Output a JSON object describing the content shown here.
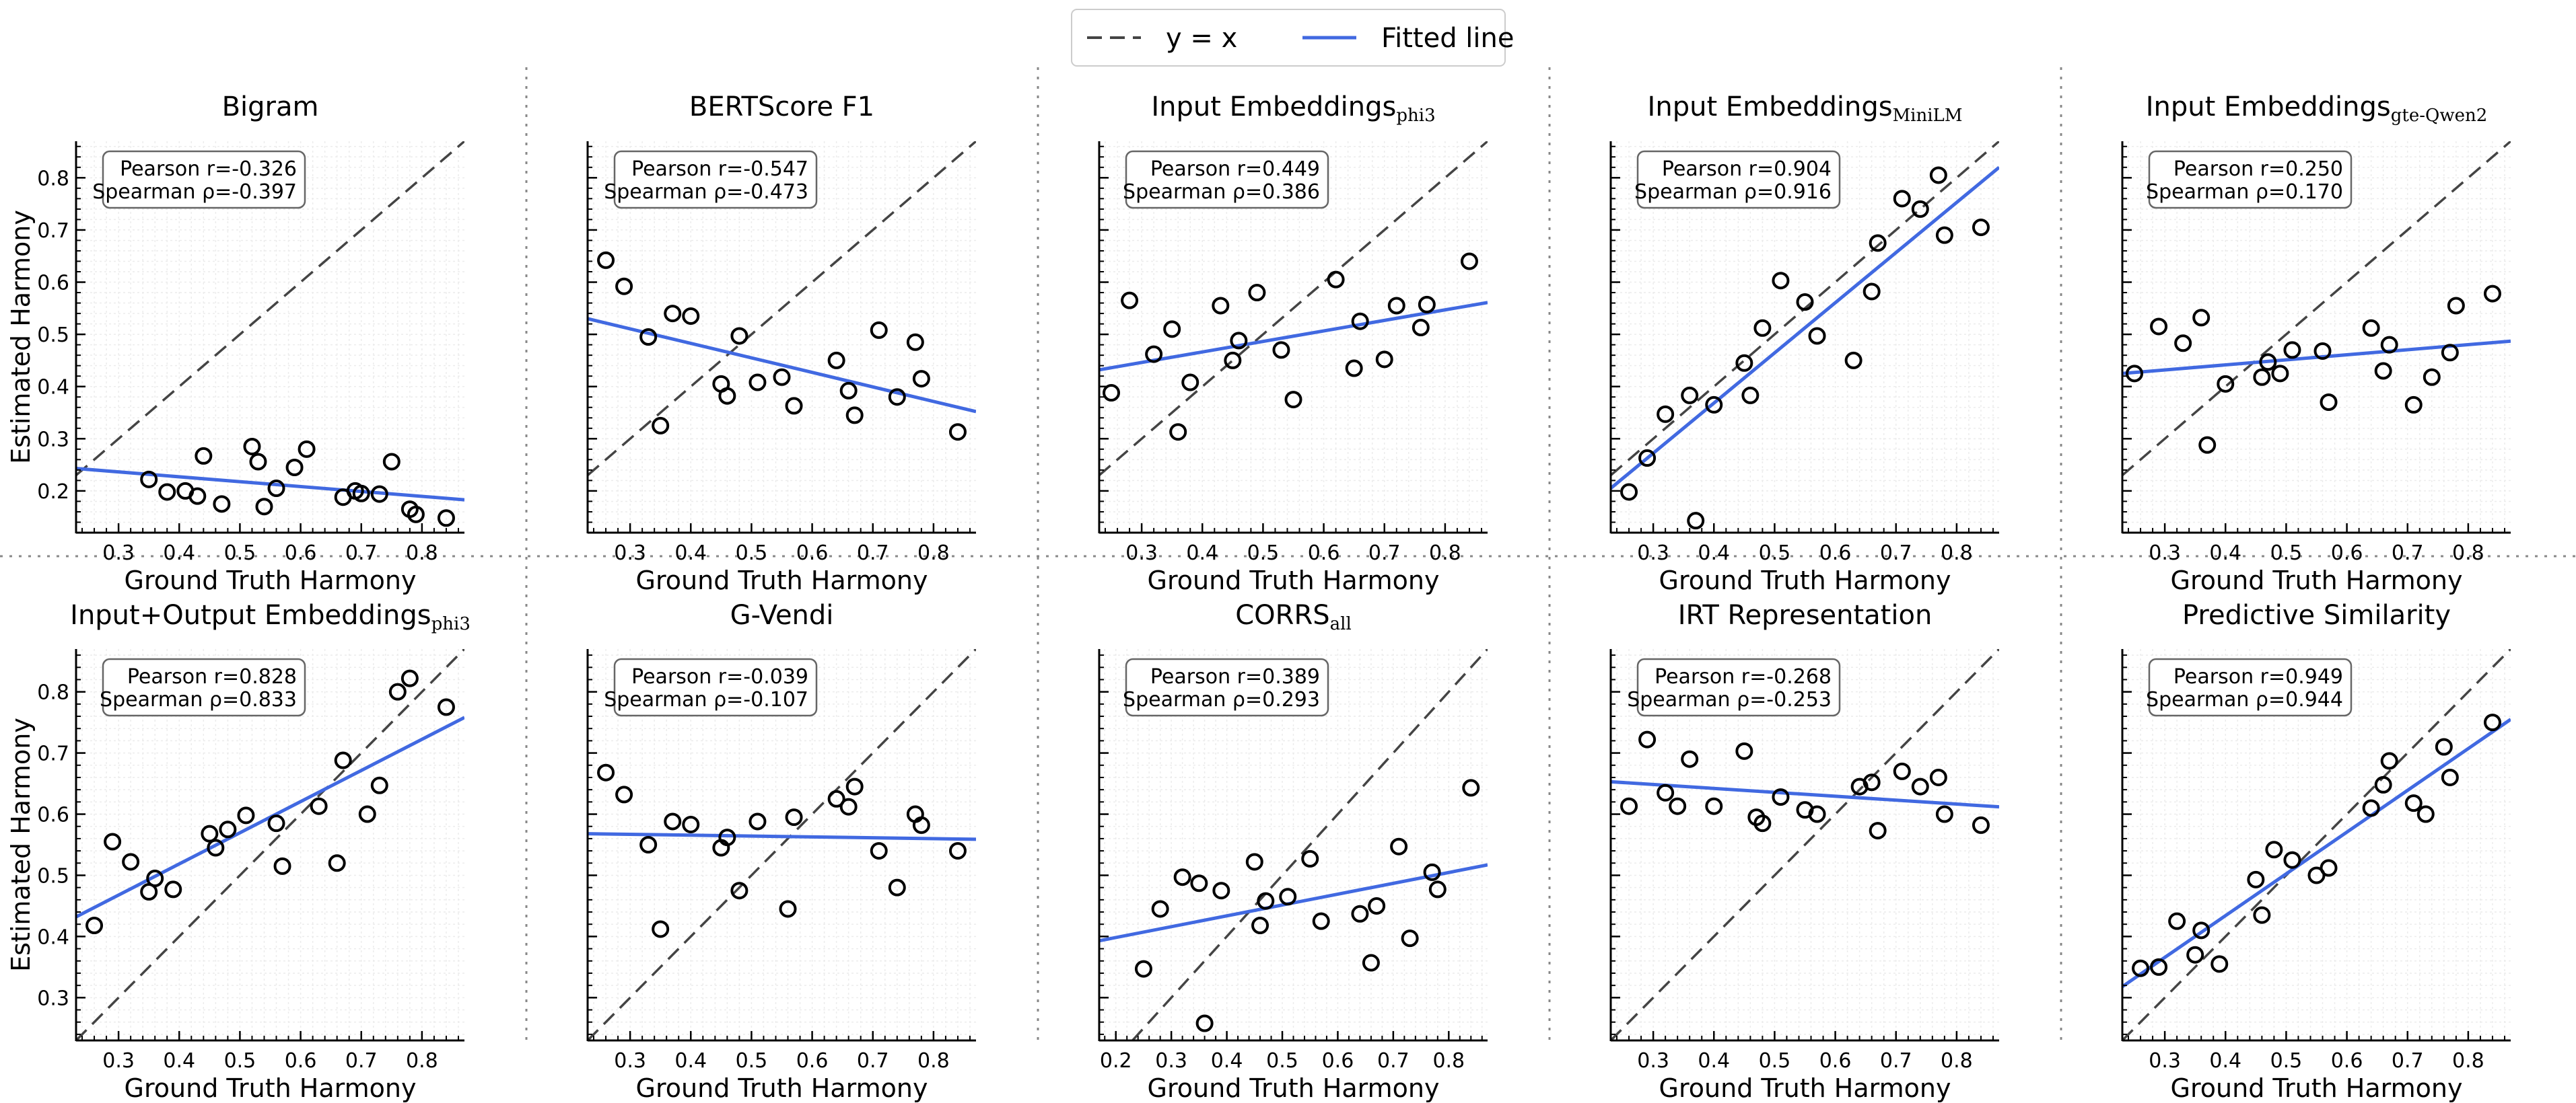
{
  "legend": {
    "items": [
      {
        "label": "y = x",
        "style": "dashed",
        "color": "#444444"
      },
      {
        "label": "Fitted line",
        "style": "solid",
        "color": "#4169E1"
      }
    ]
  },
  "axes": {
    "xlabel": "Ground Truth Harmony",
    "ylabel": "Estimated Harmony"
  },
  "colors": {
    "fit": "#4169E1",
    "identity": "#444444",
    "marker": "#000000",
    "separator": "#888888"
  },
  "chart_data": [
    {
      "type": "scatter",
      "title": "Bigram",
      "pearson_label": "Pearson r=-0.326",
      "spearman_label": "Spearman ρ=-0.397",
      "xlim": [
        0.23,
        0.87
      ],
      "ylim": [
        0.12,
        0.87
      ],
      "xticks": [
        0.3,
        0.4,
        0.5,
        0.6,
        0.7,
        0.8
      ],
      "yticks": [
        0.2,
        0.3,
        0.4,
        0.5,
        0.6,
        0.7,
        0.8
      ],
      "fit": [
        [
          0.23,
          0.243
        ],
        [
          0.87,
          0.183
        ]
      ],
      "points": [
        [
          0.35,
          0.222
        ],
        [
          0.38,
          0.198
        ],
        [
          0.41,
          0.2
        ],
        [
          0.43,
          0.19
        ],
        [
          0.44,
          0.267
        ],
        [
          0.47,
          0.175
        ],
        [
          0.52,
          0.285
        ],
        [
          0.53,
          0.256
        ],
        [
          0.54,
          0.17
        ],
        [
          0.56,
          0.205
        ],
        [
          0.59,
          0.245
        ],
        [
          0.61,
          0.28
        ],
        [
          0.67,
          0.188
        ],
        [
          0.69,
          0.2
        ],
        [
          0.7,
          0.195
        ],
        [
          0.73,
          0.194
        ],
        [
          0.75,
          0.256
        ],
        [
          0.78,
          0.165
        ],
        [
          0.79,
          0.155
        ],
        [
          0.84,
          0.148
        ]
      ]
    },
    {
      "type": "scatter",
      "title": "BERTScore F1",
      "pearson_label": "Pearson r=-0.547",
      "spearman_label": "Spearman ρ=-0.473",
      "xlim": [
        0.23,
        0.87
      ],
      "ylim": [
        0.12,
        0.87
      ],
      "xticks": [
        0.3,
        0.4,
        0.5,
        0.6,
        0.7,
        0.8
      ],
      "yticks": [
        0.2,
        0.3,
        0.4,
        0.5,
        0.6,
        0.7,
        0.8
      ],
      "fit": [
        [
          0.23,
          0.53
        ],
        [
          0.87,
          0.352
        ]
      ],
      "points": [
        [
          0.26,
          0.642
        ],
        [
          0.29,
          0.592
        ],
        [
          0.33,
          0.495
        ],
        [
          0.35,
          0.325
        ],
        [
          0.37,
          0.54
        ],
        [
          0.4,
          0.535
        ],
        [
          0.45,
          0.405
        ],
        [
          0.46,
          0.382
        ],
        [
          0.48,
          0.497
        ],
        [
          0.51,
          0.408
        ],
        [
          0.55,
          0.418
        ],
        [
          0.57,
          0.363
        ],
        [
          0.64,
          0.45
        ],
        [
          0.66,
          0.392
        ],
        [
          0.67,
          0.345
        ],
        [
          0.71,
          0.508
        ],
        [
          0.74,
          0.38
        ],
        [
          0.77,
          0.485
        ],
        [
          0.78,
          0.415
        ],
        [
          0.84,
          0.313
        ]
      ]
    },
    {
      "type": "scatter",
      "title": "Input Embeddings",
      "title_sub": "phi3",
      "pearson_label": "Pearson r=0.449",
      "spearman_label": "Spearman ρ=0.386",
      "xlim": [
        0.23,
        0.87
      ],
      "ylim": [
        0.12,
        0.87
      ],
      "xticks": [
        0.3,
        0.4,
        0.5,
        0.6,
        0.7,
        0.8
      ],
      "yticks": [
        0.2,
        0.3,
        0.4,
        0.5,
        0.6,
        0.7,
        0.8
      ],
      "fit": [
        [
          0.23,
          0.432
        ],
        [
          0.87,
          0.561
        ]
      ],
      "points": [
        [
          0.25,
          0.388
        ],
        [
          0.28,
          0.565
        ],
        [
          0.32,
          0.462
        ],
        [
          0.35,
          0.51
        ],
        [
          0.36,
          0.313
        ],
        [
          0.38,
          0.408
        ],
        [
          0.43,
          0.555
        ],
        [
          0.45,
          0.45
        ],
        [
          0.46,
          0.488
        ],
        [
          0.49,
          0.58
        ],
        [
          0.53,
          0.47
        ],
        [
          0.55,
          0.375
        ],
        [
          0.62,
          0.605
        ],
        [
          0.65,
          0.435
        ],
        [
          0.66,
          0.525
        ],
        [
          0.7,
          0.452
        ],
        [
          0.72,
          0.555
        ],
        [
          0.76,
          0.513
        ],
        [
          0.77,
          0.557
        ],
        [
          0.84,
          0.64
        ]
      ]
    },
    {
      "type": "scatter",
      "title": "Input Embeddings",
      "title_sub": "MiniLM",
      "pearson_label": "Pearson r=0.904",
      "spearman_label": "Spearman ρ=0.916",
      "xlim": [
        0.23,
        0.87
      ],
      "ylim": [
        0.12,
        0.87
      ],
      "xticks": [
        0.3,
        0.4,
        0.5,
        0.6,
        0.7,
        0.8
      ],
      "yticks": [
        0.2,
        0.3,
        0.4,
        0.5,
        0.6,
        0.7,
        0.8
      ],
      "fit": [
        [
          0.23,
          0.205
        ],
        [
          0.87,
          0.82
        ]
      ],
      "points": [
        [
          0.26,
          0.198
        ],
        [
          0.29,
          0.263
        ],
        [
          0.32,
          0.347
        ],
        [
          0.36,
          0.383
        ],
        [
          0.37,
          0.143
        ],
        [
          0.4,
          0.365
        ],
        [
          0.45,
          0.445
        ],
        [
          0.46,
          0.383
        ],
        [
          0.48,
          0.512
        ],
        [
          0.51,
          0.603
        ],
        [
          0.55,
          0.562
        ],
        [
          0.57,
          0.497
        ],
        [
          0.63,
          0.45
        ],
        [
          0.66,
          0.582
        ],
        [
          0.67,
          0.675
        ],
        [
          0.71,
          0.76
        ],
        [
          0.74,
          0.74
        ],
        [
          0.77,
          0.805
        ],
        [
          0.78,
          0.69
        ],
        [
          0.84,
          0.705
        ]
      ]
    },
    {
      "type": "scatter",
      "title": "Input Embeddings",
      "title_sub": "gte-Qwen2",
      "pearson_label": "Pearson r=0.250",
      "spearman_label": "Spearman ρ=0.170",
      "xlim": [
        0.23,
        0.87
      ],
      "ylim": [
        0.12,
        0.87
      ],
      "xticks": [
        0.3,
        0.4,
        0.5,
        0.6,
        0.7,
        0.8
      ],
      "yticks": [
        0.2,
        0.3,
        0.4,
        0.5,
        0.6,
        0.7,
        0.8
      ],
      "fit": [
        [
          0.23,
          0.425
        ],
        [
          0.87,
          0.487
        ]
      ],
      "points": [
        [
          0.25,
          0.425
        ],
        [
          0.29,
          0.515
        ],
        [
          0.33,
          0.483
        ],
        [
          0.36,
          0.532
        ],
        [
          0.37,
          0.288
        ],
        [
          0.4,
          0.405
        ],
        [
          0.46,
          0.418
        ],
        [
          0.47,
          0.447
        ],
        [
          0.49,
          0.425
        ],
        [
          0.51,
          0.47
        ],
        [
          0.56,
          0.468
        ],
        [
          0.57,
          0.37
        ],
        [
          0.64,
          0.512
        ],
        [
          0.66,
          0.43
        ],
        [
          0.67,
          0.48
        ],
        [
          0.71,
          0.365
        ],
        [
          0.74,
          0.418
        ],
        [
          0.77,
          0.465
        ],
        [
          0.78,
          0.555
        ],
        [
          0.84,
          0.578
        ]
      ]
    },
    {
      "type": "scatter",
      "title": "Input+Output Embeddings",
      "title_sub": "phi3",
      "pearson_label": "Pearson r=0.828",
      "spearman_label": "Spearman ρ=0.833",
      "xlim": [
        0.23,
        0.87
      ],
      "ylim": [
        0.23,
        0.87
      ],
      "xticks": [
        0.3,
        0.4,
        0.5,
        0.6,
        0.7,
        0.8
      ],
      "yticks": [
        0.3,
        0.4,
        0.5,
        0.6,
        0.7,
        0.8
      ],
      "fit": [
        [
          0.23,
          0.432
        ],
        [
          0.87,
          0.758
        ]
      ],
      "points": [
        [
          0.26,
          0.418
        ],
        [
          0.29,
          0.555
        ],
        [
          0.32,
          0.522
        ],
        [
          0.35,
          0.473
        ],
        [
          0.36,
          0.495
        ],
        [
          0.39,
          0.477
        ],
        [
          0.45,
          0.568
        ],
        [
          0.46,
          0.545
        ],
        [
          0.48,
          0.575
        ],
        [
          0.51,
          0.598
        ],
        [
          0.56,
          0.585
        ],
        [
          0.57,
          0.515
        ],
        [
          0.63,
          0.613
        ],
        [
          0.66,
          0.52
        ],
        [
          0.67,
          0.688
        ],
        [
          0.71,
          0.6
        ],
        [
          0.73,
          0.647
        ],
        [
          0.76,
          0.8
        ],
        [
          0.78,
          0.822
        ],
        [
          0.84,
          0.775
        ]
      ]
    },
    {
      "type": "scatter",
      "title": "G-Vendi",
      "pearson_label": "Pearson r=-0.039",
      "spearman_label": "Spearman ρ=-0.107",
      "xlim": [
        0.23,
        0.87
      ],
      "ylim": [
        0.23,
        0.87
      ],
      "xticks": [
        0.3,
        0.4,
        0.5,
        0.6,
        0.7,
        0.8
      ],
      "yticks": [
        0.3,
        0.4,
        0.5,
        0.6,
        0.7,
        0.8
      ],
      "fit": [
        [
          0.23,
          0.568
        ],
        [
          0.87,
          0.559
        ]
      ],
      "points": [
        [
          0.26,
          0.668
        ],
        [
          0.29,
          0.632
        ],
        [
          0.33,
          0.55
        ],
        [
          0.35,
          0.412
        ],
        [
          0.37,
          0.588
        ],
        [
          0.4,
          0.583
        ],
        [
          0.45,
          0.545
        ],
        [
          0.46,
          0.562
        ],
        [
          0.48,
          0.475
        ],
        [
          0.51,
          0.588
        ],
        [
          0.56,
          0.445
        ],
        [
          0.57,
          0.595
        ],
        [
          0.64,
          0.625
        ],
        [
          0.66,
          0.612
        ],
        [
          0.67,
          0.645
        ],
        [
          0.71,
          0.54
        ],
        [
          0.74,
          0.48
        ],
        [
          0.77,
          0.6
        ],
        [
          0.78,
          0.582
        ],
        [
          0.84,
          0.54
        ]
      ]
    },
    {
      "type": "scatter",
      "title": "CORRS",
      "title_sub": "all",
      "pearson_label": "Pearson r=0.389",
      "spearman_label": "Spearman ρ=0.293",
      "xlim": [
        0.17,
        0.87
      ],
      "ylim": [
        0.23,
        0.87
      ],
      "xticks": [
        0.2,
        0.3,
        0.4,
        0.5,
        0.6,
        0.7,
        0.8
      ],
      "yticks": [
        0.3,
        0.4,
        0.5,
        0.6,
        0.7,
        0.8
      ],
      "fit": [
        [
          0.17,
          0.393
        ],
        [
          0.87,
          0.517
        ]
      ],
      "points": [
        [
          0.25,
          0.347
        ],
        [
          0.28,
          0.445
        ],
        [
          0.32,
          0.497
        ],
        [
          0.35,
          0.487
        ],
        [
          0.36,
          0.258
        ],
        [
          0.39,
          0.475
        ],
        [
          0.45,
          0.522
        ],
        [
          0.46,
          0.418
        ],
        [
          0.47,
          0.458
        ],
        [
          0.51,
          0.465
        ],
        [
          0.55,
          0.527
        ],
        [
          0.57,
          0.425
        ],
        [
          0.64,
          0.437
        ],
        [
          0.66,
          0.357
        ],
        [
          0.67,
          0.45
        ],
        [
          0.71,
          0.547
        ],
        [
          0.73,
          0.397
        ],
        [
          0.77,
          0.505
        ],
        [
          0.78,
          0.477
        ],
        [
          0.84,
          0.643
        ]
      ]
    },
    {
      "type": "scatter",
      "title": "IRT Representation",
      "pearson_label": "Pearson r=-0.268",
      "spearman_label": "Spearman ρ=-0.253",
      "xlim": [
        0.23,
        0.87
      ],
      "ylim": [
        0.23,
        0.87
      ],
      "xticks": [
        0.3,
        0.4,
        0.5,
        0.6,
        0.7,
        0.8
      ],
      "yticks": [
        0.3,
        0.4,
        0.5,
        0.6,
        0.7,
        0.8
      ],
      "fit": [
        [
          0.23,
          0.653
        ],
        [
          0.87,
          0.612
        ]
      ],
      "points": [
        [
          0.26,
          0.613
        ],
        [
          0.29,
          0.722
        ],
        [
          0.32,
          0.635
        ],
        [
          0.34,
          0.613
        ],
        [
          0.36,
          0.69
        ],
        [
          0.4,
          0.613
        ],
        [
          0.45,
          0.703
        ],
        [
          0.47,
          0.595
        ],
        [
          0.48,
          0.585
        ],
        [
          0.51,
          0.628
        ],
        [
          0.55,
          0.607
        ],
        [
          0.57,
          0.6
        ],
        [
          0.64,
          0.645
        ],
        [
          0.66,
          0.652
        ],
        [
          0.67,
          0.573
        ],
        [
          0.71,
          0.67
        ],
        [
          0.74,
          0.645
        ],
        [
          0.77,
          0.66
        ],
        [
          0.78,
          0.6
        ],
        [
          0.84,
          0.582
        ]
      ]
    },
    {
      "type": "scatter",
      "title": "Predictive Similarity",
      "pearson_label": "Pearson r=0.949",
      "spearman_label": "Spearman ρ=0.944",
      "xlim": [
        0.23,
        0.87
      ],
      "ylim": [
        0.23,
        0.87
      ],
      "xticks": [
        0.3,
        0.4,
        0.5,
        0.6,
        0.7,
        0.8
      ],
      "yticks": [
        0.3,
        0.4,
        0.5,
        0.6,
        0.7,
        0.8
      ],
      "fit": [
        [
          0.23,
          0.318
        ],
        [
          0.87,
          0.755
        ]
      ],
      "points": [
        [
          0.26,
          0.348
        ],
        [
          0.29,
          0.35
        ],
        [
          0.32,
          0.425
        ],
        [
          0.35,
          0.37
        ],
        [
          0.36,
          0.41
        ],
        [
          0.39,
          0.355
        ],
        [
          0.45,
          0.493
        ],
        [
          0.46,
          0.435
        ],
        [
          0.48,
          0.542
        ],
        [
          0.51,
          0.525
        ],
        [
          0.55,
          0.5
        ],
        [
          0.57,
          0.512
        ],
        [
          0.64,
          0.61
        ],
        [
          0.66,
          0.648
        ],
        [
          0.67,
          0.687
        ],
        [
          0.71,
          0.618
        ],
        [
          0.73,
          0.6
        ],
        [
          0.76,
          0.71
        ],
        [
          0.77,
          0.66
        ],
        [
          0.84,
          0.75
        ]
      ]
    }
  ]
}
